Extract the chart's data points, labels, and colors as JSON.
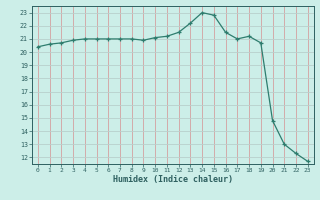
{
  "title": "",
  "xlabel": "Humidex (Indice chaleur)",
  "ylabel": "",
  "x_values": [
    0,
    1,
    2,
    3,
    4,
    5,
    6,
    7,
    8,
    9,
    10,
    11,
    12,
    13,
    14,
    15,
    16,
    17,
    18,
    19,
    20,
    21,
    22,
    23
  ],
  "y_values": [
    20.4,
    20.6,
    20.7,
    20.9,
    21.0,
    21.0,
    21.0,
    21.0,
    21.0,
    20.9,
    21.1,
    21.2,
    21.5,
    22.2,
    23.0,
    22.8,
    21.5,
    21.0,
    21.2,
    20.7,
    14.8,
    13.0,
    12.3,
    11.7
  ],
  "line_color": "#2e7d6e",
  "marker": "+",
  "bg_color": "#cceee8",
  "grid_color_minor": "#e8c8c8",
  "grid_color_major": "#c8ddd8",
  "tick_label_color": "#2e6060",
  "ylim": [
    11.5,
    23.5
  ],
  "yticks": [
    12,
    13,
    14,
    15,
    16,
    17,
    18,
    19,
    20,
    21,
    22,
    23
  ],
  "xlim": [
    -0.5,
    23.5
  ],
  "xticks": [
    0,
    1,
    2,
    3,
    4,
    5,
    6,
    7,
    8,
    9,
    10,
    11,
    12,
    13,
    14,
    15,
    16,
    17,
    18,
    19,
    20,
    21,
    22,
    23
  ]
}
